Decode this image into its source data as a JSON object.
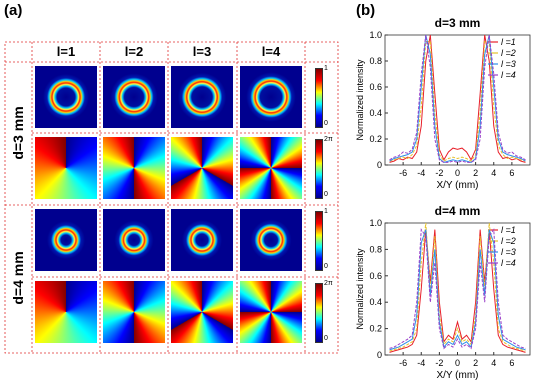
{
  "figure": {
    "panel_a_label": "(a)",
    "panel_b_label": "(b)"
  },
  "table": {
    "columns": [
      "l=1",
      "l=2",
      "l=3",
      "l=4"
    ],
    "rows": [
      "d=3 mm",
      "d=4 mm"
    ],
    "colorbar_labels": [
      [
        "1",
        "0"
      ],
      [
        "2π",
        "0"
      ],
      [
        "1",
        "0"
      ],
      [
        "2π",
        "0"
      ]
    ]
  },
  "chart_data": [
    {
      "type": "line",
      "title": "d=3 mm",
      "x_label": "X/Y (mm)",
      "y_label": "Normalized intensity",
      "x": [
        -7.5,
        -7,
        -6.5,
        -6,
        -5.5,
        -5,
        -4.5,
        -4,
        -3.5,
        -3,
        -2.5,
        -2,
        -1.5,
        -1,
        -0.5,
        0,
        0.5,
        1,
        1.5,
        2,
        2.5,
        3,
        3.5,
        4,
        4.5,
        5,
        5.5,
        6,
        6.5,
        7,
        7.5
      ],
      "series": [
        {
          "name": "l =1",
          "color": "#e8202a",
          "values": [
            0.02,
            0.03,
            0.05,
            0.04,
            0.06,
            0.05,
            0.1,
            0.3,
            0.8,
            1.0,
            0.55,
            0.12,
            0.04,
            0.1,
            0.13,
            0.12,
            0.13,
            0.1,
            0.04,
            0.12,
            0.55,
            1.0,
            0.8,
            0.3,
            0.1,
            0.05,
            0.06,
            0.04,
            0.05,
            0.03,
            0.02
          ]
        },
        {
          "name": "l =2",
          "color": "#e6c22a",
          "values": [
            0.03,
            0.04,
            0.05,
            0.06,
            0.05,
            0.08,
            0.15,
            0.45,
            0.95,
            0.95,
            0.4,
            0.08,
            0.03,
            0.05,
            0.06,
            0.05,
            0.06,
            0.05,
            0.03,
            0.08,
            0.4,
            0.95,
            0.95,
            0.45,
            0.15,
            0.08,
            0.05,
            0.06,
            0.05,
            0.04,
            0.03
          ]
        },
        {
          "name": "l =3",
          "color": "#2f8fe8",
          "values": [
            0.03,
            0.05,
            0.06,
            0.07,
            0.08,
            0.1,
            0.2,
            0.6,
            1.0,
            0.85,
            0.3,
            0.05,
            0.02,
            0.03,
            0.04,
            0.03,
            0.04,
            0.03,
            0.02,
            0.05,
            0.3,
            0.85,
            1.0,
            0.6,
            0.2,
            0.1,
            0.08,
            0.07,
            0.06,
            0.05,
            0.03
          ]
        },
        {
          "name": "l =4",
          "color": "#9a3fc8",
          "values": [
            0.04,
            0.06,
            0.07,
            0.1,
            0.09,
            0.12,
            0.25,
            0.7,
            1.0,
            0.75,
            0.2,
            0.04,
            0.02,
            0.02,
            0.03,
            0.02,
            0.03,
            0.02,
            0.02,
            0.04,
            0.2,
            0.75,
            1.0,
            0.7,
            0.25,
            0.12,
            0.09,
            0.1,
            0.07,
            0.06,
            0.04
          ]
        }
      ],
      "xlim": [
        -8,
        8
      ],
      "ylim": [
        0,
        1
      ],
      "xticks": [
        -6,
        -4,
        -2,
        0,
        2,
        4,
        6
      ],
      "yticks": [
        0,
        0.2,
        0.4,
        0.6,
        0.8,
        {
          "value": 1,
          "label": "1.0"
        }
      ]
    },
    {
      "type": "line",
      "title": "d=4 mm",
      "x_label": "X/Y (mm)",
      "y_label": "Normalized intensity",
      "x": [
        -7.5,
        -7,
        -6.5,
        -6,
        -5.5,
        -5,
        -4.5,
        -4,
        -3.5,
        -3,
        -2.5,
        -2,
        -1.5,
        -1,
        -0.5,
        0,
        0.5,
        1,
        1.5,
        2,
        2.5,
        3,
        3.5,
        4,
        4.5,
        5,
        5.5,
        6,
        6.5,
        7,
        7.5
      ],
      "series": [
        {
          "name": "l =1",
          "color": "#e8202a",
          "values": [
            0.02,
            0.03,
            0.04,
            0.05,
            0.06,
            0.08,
            0.15,
            0.5,
            0.95,
            0.55,
            0.95,
            0.4,
            0.1,
            0.15,
            0.12,
            0.25,
            0.12,
            0.15,
            0.1,
            0.4,
            0.95,
            0.55,
            0.95,
            0.5,
            0.15,
            0.08,
            0.06,
            0.05,
            0.04,
            0.03,
            0.02
          ]
        },
        {
          "name": "l =2",
          "color": "#e6c22a",
          "values": [
            0.03,
            0.04,
            0.05,
            0.06,
            0.08,
            0.1,
            0.2,
            0.7,
            1.0,
            0.5,
            0.9,
            0.3,
            0.08,
            0.12,
            0.1,
            0.2,
            0.1,
            0.12,
            0.08,
            0.3,
            0.9,
            0.5,
            1.0,
            0.7,
            0.2,
            0.1,
            0.08,
            0.06,
            0.05,
            0.04,
            0.03
          ]
        },
        {
          "name": "l =3",
          "color": "#2f8fe8",
          "values": [
            0.04,
            0.05,
            0.06,
            0.08,
            0.1,
            0.12,
            0.3,
            0.85,
            0.95,
            0.45,
            0.8,
            0.25,
            0.06,
            0.1,
            0.08,
            0.15,
            0.08,
            0.1,
            0.06,
            0.25,
            0.8,
            0.45,
            0.95,
            0.85,
            0.3,
            0.12,
            0.1,
            0.08,
            0.06,
            0.05,
            0.04
          ]
        },
        {
          "name": "l =4",
          "color": "#9a3fc8",
          "values": [
            0.05,
            0.06,
            0.08,
            0.1,
            0.12,
            0.15,
            0.4,
            0.95,
            0.9,
            0.4,
            0.7,
            0.2,
            0.05,
            0.08,
            0.06,
            0.12,
            0.06,
            0.08,
            0.05,
            0.2,
            0.7,
            0.4,
            0.9,
            0.95,
            0.4,
            0.15,
            0.12,
            0.1,
            0.08,
            0.06,
            0.05
          ]
        }
      ],
      "xlim": [
        -8,
        8
      ],
      "ylim": [
        0,
        1
      ],
      "xticks": [
        -6,
        -4,
        -2,
        0,
        2,
        4,
        6
      ],
      "yticks": [
        0,
        0.2,
        0.4,
        0.6,
        0.8,
        {
          "value": 1,
          "label": "1.0"
        }
      ]
    }
  ]
}
